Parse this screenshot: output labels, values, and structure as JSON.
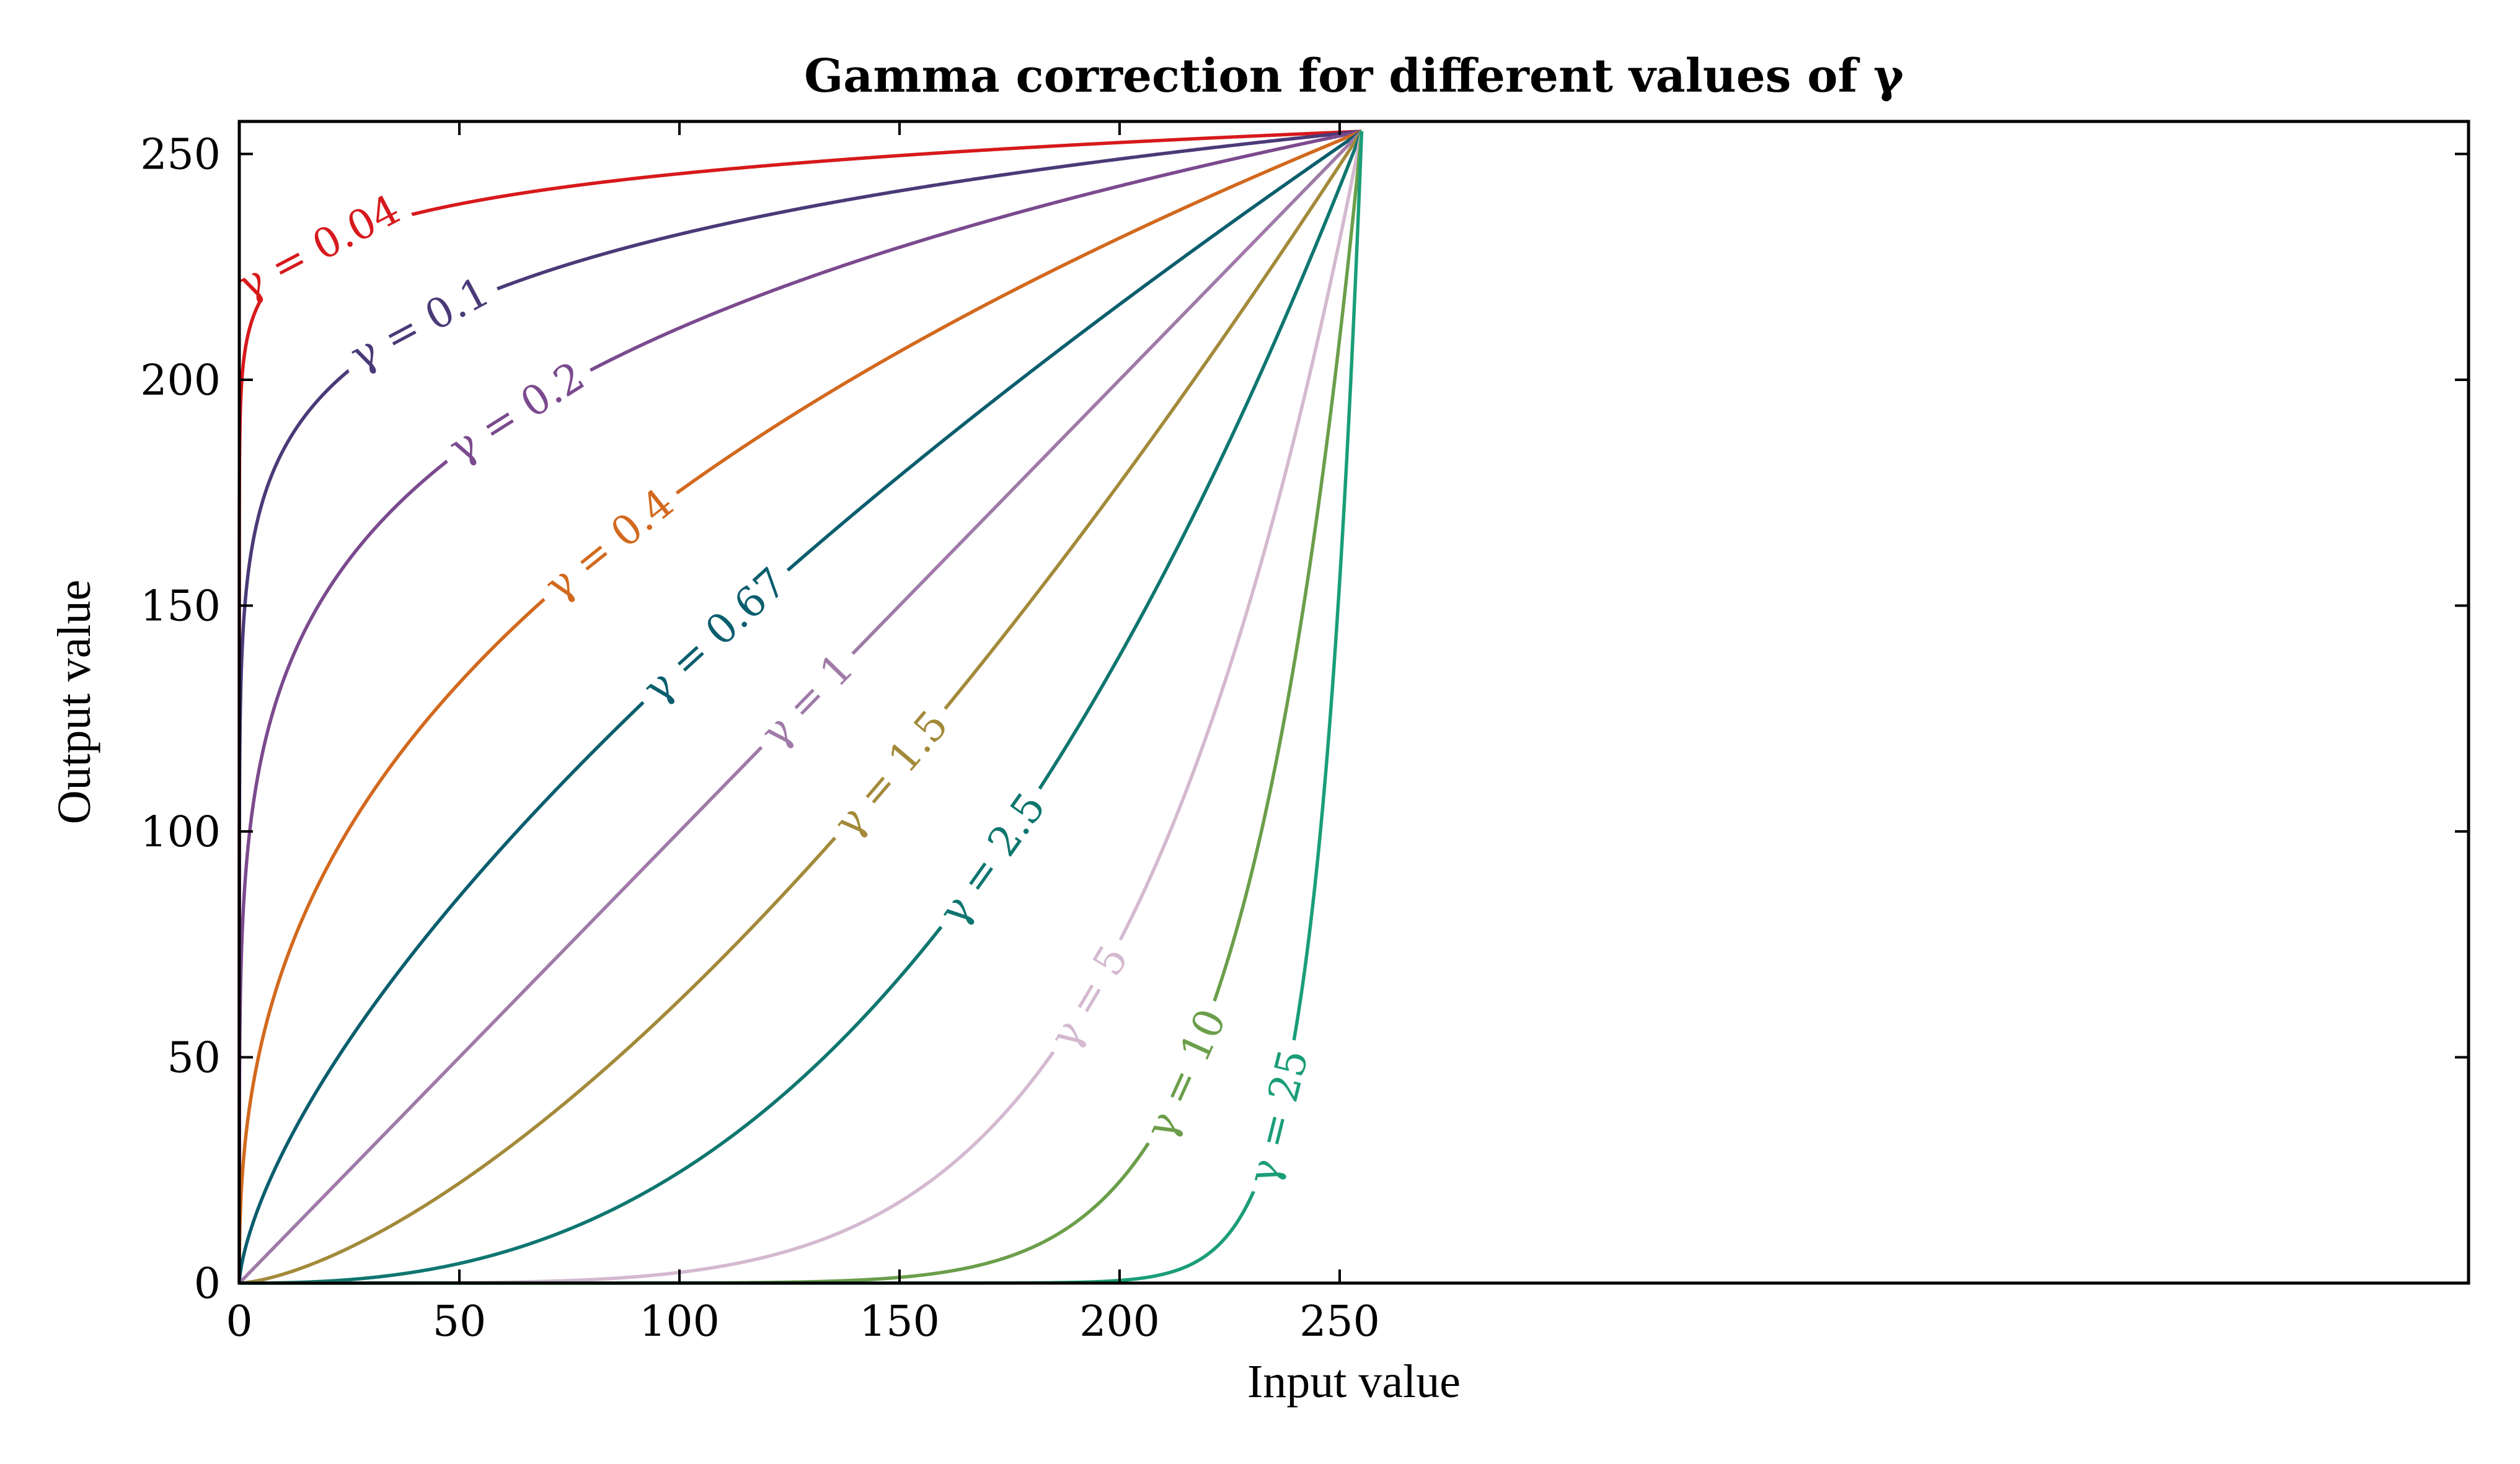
{
  "chart_data": {
    "type": "line",
    "title": "Gamma correction for different values of γ",
    "xlabel": "Input value",
    "ylabel": "Output value",
    "xlim": [
      0,
      255
    ],
    "ylim": [
      0,
      255
    ],
    "x_ticks": [
      "0",
      "50",
      "100",
      "150",
      "200",
      "250"
    ],
    "y_ticks": [
      "0",
      "50",
      "100",
      "150",
      "200",
      "250"
    ],
    "x_tick_values": [
      0,
      50,
      100,
      150,
      200,
      250
    ],
    "y_tick_values": [
      0,
      50,
      100,
      150,
      200,
      250
    ],
    "grid": false,
    "formula": "output = 255 * (input / 255) ^ gamma",
    "series": [
      {
        "gamma": 0.04,
        "label": "γ = 0.04",
        "color": "#d7191c",
        "label_at_x": 18
      },
      {
        "gamma": 0.1,
        "label": "γ = 0.1",
        "color": "#4a3a78",
        "label_at_x": 41
      },
      {
        "gamma": 0.2,
        "label": "γ = 0.2",
        "color": "#7b4a8e",
        "label_at_x": 63
      },
      {
        "gamma": 0.4,
        "label": "γ = 0.4",
        "color": "#d2691e",
        "label_at_x": 84
      },
      {
        "gamma": 0.67,
        "label": "γ = 0.67",
        "color": "#0b5e6e",
        "label_at_x": 108
      },
      {
        "gamma": 1,
        "label": "γ = 1",
        "color": "#a07aa8",
        "label_at_x": 129
      },
      {
        "gamma": 1.5,
        "label": "γ = 1.5",
        "color": "#a38a3a",
        "label_at_x": 148
      },
      {
        "gamma": 2.5,
        "label": "γ = 2.5",
        "color": "#0f7670",
        "label_at_x": 171
      },
      {
        "gamma": 5,
        "label": "γ = 5",
        "color": "#d4b9d0",
        "label_at_x": 193
      },
      {
        "gamma": 10,
        "label": "γ = 10",
        "color": "#6b9e4a",
        "label_at_x": 215
      },
      {
        "gamma": 25,
        "label": "γ = 25",
        "color": "#1a9e78",
        "label_at_x": 236
      }
    ]
  }
}
